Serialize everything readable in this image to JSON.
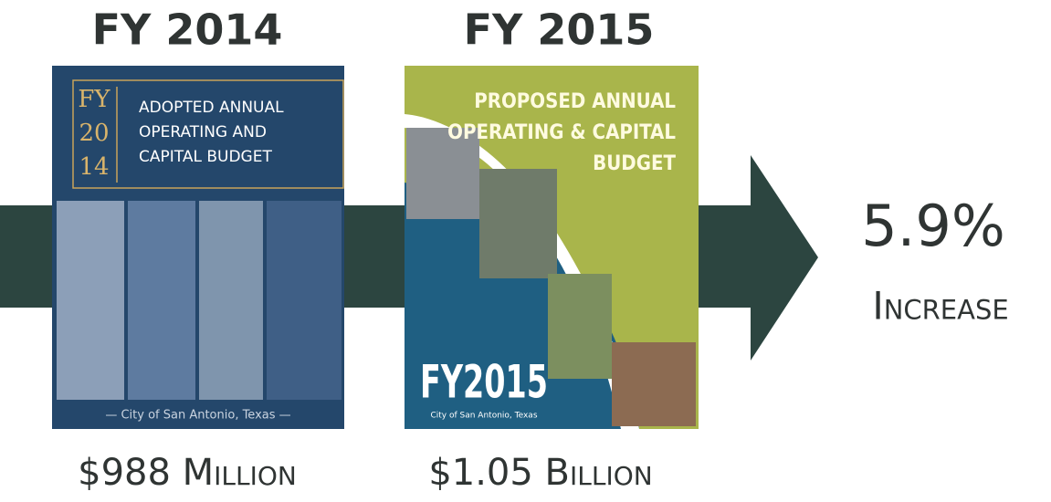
{
  "fy2014": {
    "label": "FY 2014",
    "cover": {
      "year_lines": [
        "FY",
        "20",
        "14"
      ],
      "title_lines": [
        "ADOPTED ANNUAL",
        "OPERATING AND",
        "CAPITAL BUDGET"
      ],
      "footer": "— City of San Antonio, Texas —"
    },
    "amount": "$988 Million"
  },
  "fy2015": {
    "label": "FY 2015",
    "cover": {
      "title_lines": [
        "PROPOSED ANNUAL",
        "OPERATING & CAPITAL",
        "BUDGET"
      ],
      "year": "FY2015",
      "footer": "City of San Antonio, Texas"
    },
    "amount": "$1.05 Billion"
  },
  "result": {
    "value": "5.9%",
    "label": "Increase"
  }
}
